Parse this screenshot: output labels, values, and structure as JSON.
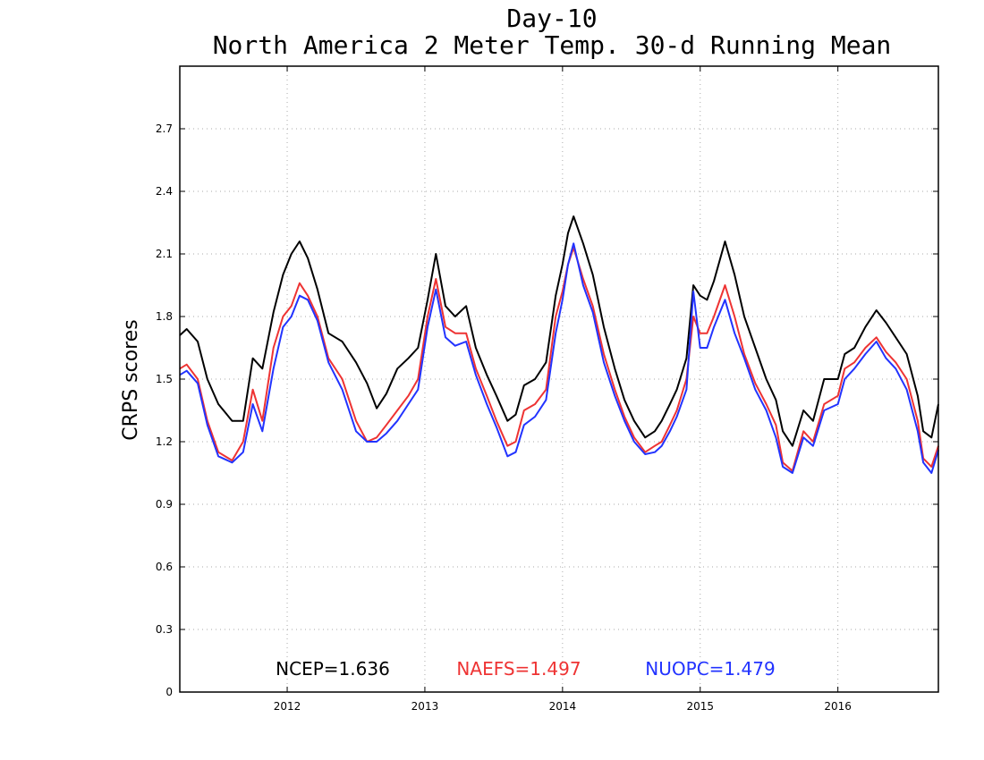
{
  "chart_data": {
    "type": "line",
    "title": "Day-10",
    "subtitle": "North America 2 Meter Temp. 30-d Running Mean",
    "xlabel": "",
    "ylabel": "CRPS scores",
    "xlim": [
      2011.22,
      2016.73
    ],
    "ylim": [
      0,
      3.0
    ],
    "y_ticks": [
      0,
      0.3,
      0.6,
      0.9,
      1.2,
      1.5,
      1.8,
      2.1,
      2.4,
      2.7
    ],
    "y_tick_labels": [
      "0",
      "0.3",
      "0.6",
      "0.9",
      "1.2",
      "1.5",
      "1.8",
      "2.1",
      "2.4",
      "2.7"
    ],
    "x_ticks": [
      2012,
      2013,
      2014,
      2015,
      2016
    ],
    "x_tick_labels": [
      "2012",
      "2013",
      "2014",
      "2015",
      "2016"
    ],
    "grid": true,
    "legend_position": "bottom-center",
    "legend": [
      {
        "label": "NCEP=1.636",
        "color": "#000000"
      },
      {
        "label": "NAEFS=1.497",
        "color": "#ee3333"
      },
      {
        "label": "NUOPC=1.479",
        "color": "#2233ff"
      }
    ],
    "series": [
      {
        "name": "NCEP",
        "color": "#000000",
        "x": [
          2011.22,
          2011.27,
          2011.35,
          2011.42,
          2011.5,
          2011.6,
          2011.68,
          2011.75,
          2011.82,
          2011.9,
          2011.97,
          2012.03,
          2012.09,
          2012.15,
          2012.22,
          2012.3,
          2012.4,
          2012.5,
          2012.58,
          2012.65,
          2012.72,
          2012.8,
          2012.88,
          2012.95,
          2013.02,
          2013.08,
          2013.15,
          2013.22,
          2013.3,
          2013.37,
          2013.45,
          2013.52,
          2013.6,
          2013.66,
          2013.72,
          2013.8,
          2013.88,
          2013.95,
          2014.0,
          2014.04,
          2014.08,
          2014.15,
          2014.22,
          2014.3,
          2014.38,
          2014.45,
          2014.52,
          2014.6,
          2014.67,
          2014.72,
          2014.78,
          2014.83,
          2014.9,
          2014.95,
          2015.0,
          2015.05,
          2015.1,
          2015.18,
          2015.25,
          2015.32,
          2015.4,
          2015.48,
          2015.55,
          2015.6,
          2015.67,
          2015.75,
          2015.82,
          2015.9,
          2016.0,
          2016.05,
          2016.12,
          2016.2,
          2016.28,
          2016.35,
          2016.42,
          2016.5,
          2016.58,
          2016.62,
          2016.68,
          2016.73
        ],
        "y": [
          1.71,
          1.74,
          1.68,
          1.5,
          1.38,
          1.3,
          1.3,
          1.6,
          1.55,
          1.82,
          2.0,
          2.1,
          2.16,
          2.08,
          1.93,
          1.72,
          1.68,
          1.58,
          1.48,
          1.36,
          1.43,
          1.55,
          1.6,
          1.65,
          1.88,
          2.1,
          1.85,
          1.8,
          1.85,
          1.65,
          1.52,
          1.42,
          1.3,
          1.33,
          1.47,
          1.5,
          1.58,
          1.9,
          2.05,
          2.2,
          2.28,
          2.15,
          2.0,
          1.75,
          1.55,
          1.4,
          1.3,
          1.22,
          1.25,
          1.3,
          1.38,
          1.45,
          1.6,
          1.95,
          1.9,
          1.88,
          1.97,
          2.16,
          2.0,
          1.8,
          1.65,
          1.5,
          1.4,
          1.25,
          1.18,
          1.35,
          1.3,
          1.5,
          1.5,
          1.62,
          1.65,
          1.75,
          1.83,
          1.77,
          1.7,
          1.62,
          1.42,
          1.25,
          1.22,
          1.38
        ]
      },
      {
        "name": "NAEFS",
        "color": "#ee3333",
        "x": [
          2011.22,
          2011.27,
          2011.35,
          2011.42,
          2011.5,
          2011.6,
          2011.68,
          2011.75,
          2011.82,
          2011.9,
          2011.97,
          2012.03,
          2012.09,
          2012.15,
          2012.22,
          2012.3,
          2012.4,
          2012.5,
          2012.58,
          2012.65,
          2012.72,
          2012.8,
          2012.88,
          2012.95,
          2013.02,
          2013.08,
          2013.15,
          2013.22,
          2013.3,
          2013.37,
          2013.45,
          2013.52,
          2013.6,
          2013.66,
          2013.72,
          2013.8,
          2013.88,
          2013.95,
          2014.0,
          2014.04,
          2014.08,
          2014.15,
          2014.22,
          2014.3,
          2014.38,
          2014.45,
          2014.52,
          2014.6,
          2014.67,
          2014.72,
          2014.78,
          2014.83,
          2014.9,
          2014.95,
          2015.0,
          2015.05,
          2015.1,
          2015.18,
          2015.25,
          2015.32,
          2015.4,
          2015.48,
          2015.55,
          2015.6,
          2015.67,
          2015.75,
          2015.82,
          2015.9,
          2016.0,
          2016.05,
          2016.12,
          2016.2,
          2016.28,
          2016.35,
          2016.42,
          2016.5,
          2016.58,
          2016.62,
          2016.68,
          2016.73
        ],
        "y": [
          1.55,
          1.57,
          1.5,
          1.3,
          1.15,
          1.11,
          1.2,
          1.45,
          1.3,
          1.65,
          1.8,
          1.85,
          1.96,
          1.9,
          1.8,
          1.6,
          1.5,
          1.3,
          1.2,
          1.22,
          1.28,
          1.35,
          1.42,
          1.5,
          1.8,
          1.98,
          1.75,
          1.72,
          1.72,
          1.55,
          1.42,
          1.3,
          1.18,
          1.2,
          1.35,
          1.38,
          1.45,
          1.8,
          1.92,
          2.05,
          2.13,
          1.98,
          1.85,
          1.62,
          1.45,
          1.32,
          1.22,
          1.15,
          1.18,
          1.2,
          1.28,
          1.35,
          1.5,
          1.8,
          1.72,
          1.72,
          1.8,
          1.95,
          1.8,
          1.62,
          1.48,
          1.38,
          1.28,
          1.1,
          1.06,
          1.25,
          1.2,
          1.38,
          1.42,
          1.55,
          1.58,
          1.65,
          1.7,
          1.63,
          1.58,
          1.5,
          1.3,
          1.12,
          1.08,
          1.18
        ]
      },
      {
        "name": "NUOPC",
        "color": "#2233ff",
        "x": [
          2011.22,
          2011.27,
          2011.35,
          2011.42,
          2011.5,
          2011.6,
          2011.68,
          2011.75,
          2011.82,
          2011.9,
          2011.97,
          2012.03,
          2012.09,
          2012.15,
          2012.22,
          2012.3,
          2012.4,
          2012.5,
          2012.58,
          2012.65,
          2012.72,
          2012.8,
          2012.88,
          2012.95,
          2013.02,
          2013.08,
          2013.15,
          2013.22,
          2013.3,
          2013.37,
          2013.45,
          2013.52,
          2013.6,
          2013.66,
          2013.72,
          2013.8,
          2013.88,
          2013.95,
          2014.0,
          2014.04,
          2014.08,
          2014.15,
          2014.22,
          2014.3,
          2014.38,
          2014.45,
          2014.52,
          2014.6,
          2014.67,
          2014.72,
          2014.78,
          2014.83,
          2014.9,
          2014.95,
          2015.0,
          2015.05,
          2015.1,
          2015.18,
          2015.25,
          2015.32,
          2015.4,
          2015.48,
          2015.55,
          2015.6,
          2015.67,
          2015.75,
          2015.82,
          2015.9,
          2016.0,
          2016.05,
          2016.12,
          2016.2,
          2016.28,
          2016.35,
          2016.42,
          2016.5,
          2016.58,
          2016.62,
          2016.68,
          2016.73
        ],
        "y": [
          1.52,
          1.54,
          1.48,
          1.28,
          1.13,
          1.1,
          1.15,
          1.38,
          1.25,
          1.55,
          1.75,
          1.8,
          1.9,
          1.88,
          1.78,
          1.58,
          1.45,
          1.25,
          1.2,
          1.2,
          1.24,
          1.3,
          1.38,
          1.45,
          1.75,
          1.93,
          1.7,
          1.66,
          1.68,
          1.52,
          1.38,
          1.27,
          1.13,
          1.15,
          1.28,
          1.32,
          1.4,
          1.72,
          1.88,
          2.05,
          2.15,
          1.95,
          1.82,
          1.58,
          1.42,
          1.3,
          1.2,
          1.14,
          1.15,
          1.18,
          1.25,
          1.32,
          1.45,
          1.92,
          1.65,
          1.65,
          1.75,
          1.88,
          1.72,
          1.6,
          1.45,
          1.35,
          1.22,
          1.08,
          1.05,
          1.22,
          1.18,
          1.35,
          1.38,
          1.5,
          1.55,
          1.62,
          1.68,
          1.6,
          1.55,
          1.45,
          1.25,
          1.1,
          1.05,
          1.16
        ]
      }
    ]
  }
}
